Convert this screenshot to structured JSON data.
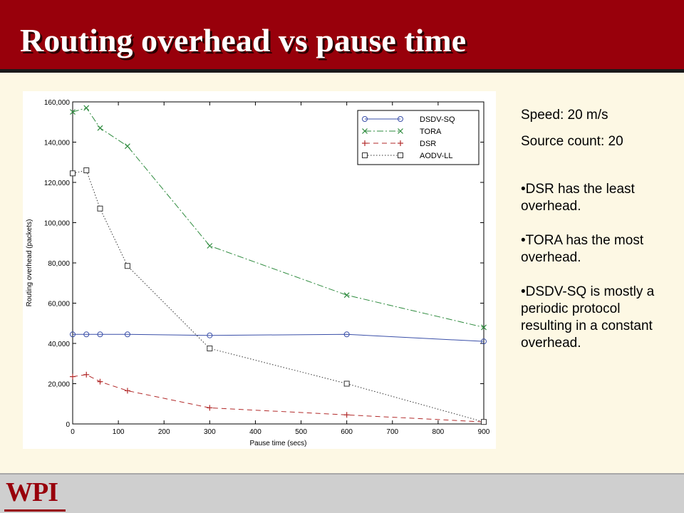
{
  "slide": {
    "title": "Routing overhead vs pause time",
    "speed": "Speed: 20 m/s",
    "source_count": "Source count: 20",
    "bullets": [
      "•DSR has the least overhead.",
      "•TORA has the most overhead.",
      "•DSDV-SQ is mostly a periodic protocol resulting in a constant overhead."
    ],
    "logo_text": "WPI"
  },
  "colors": {
    "title_bar": "#98000b",
    "background": "#fdf8e4",
    "footer": "#cfcfcf"
  },
  "chart_data": {
    "type": "line",
    "xlabel": "Pause time (secs)",
    "ylabel": "Routing overhead (packets)",
    "xlim": [
      0,
      900
    ],
    "ylim": [
      0,
      160000
    ],
    "xticks": [
      "0",
      "100",
      "200",
      "300",
      "400",
      "500",
      "600",
      "700",
      "800",
      "900"
    ],
    "yticks": [
      "0",
      "20,000",
      "40,000",
      "60,000",
      "80,000",
      "100,000",
      "120,000",
      "140,000",
      "160,000"
    ],
    "grid": false,
    "legend_position": "top-right",
    "x": [
      0,
      30,
      60,
      120,
      300,
      600,
      900
    ],
    "series": [
      {
        "name": "DSDV-SQ",
        "color": "#3a4fa8",
        "marker": "circle",
        "dash": "solid",
        "values": [
          44500,
          44500,
          44500,
          44500,
          44000,
          44500,
          41000
        ]
      },
      {
        "name": "TORA",
        "color": "#2e8b3e",
        "marker": "x",
        "dash": "dashdot",
        "values": [
          155000,
          157000,
          147000,
          138000,
          88500,
          64000,
          48000
        ]
      },
      {
        "name": "DSR",
        "color": "#b22a2a",
        "marker": "plus",
        "dash": "dashed",
        "values": [
          23500,
          24500,
          21000,
          16500,
          8000,
          4500,
          1000
        ]
      },
      {
        "name": "AODV-LL",
        "color": "#333333",
        "marker": "square",
        "dash": "dotted",
        "values": [
          124500,
          126000,
          107000,
          78500,
          37500,
          20000,
          1000
        ]
      }
    ]
  }
}
